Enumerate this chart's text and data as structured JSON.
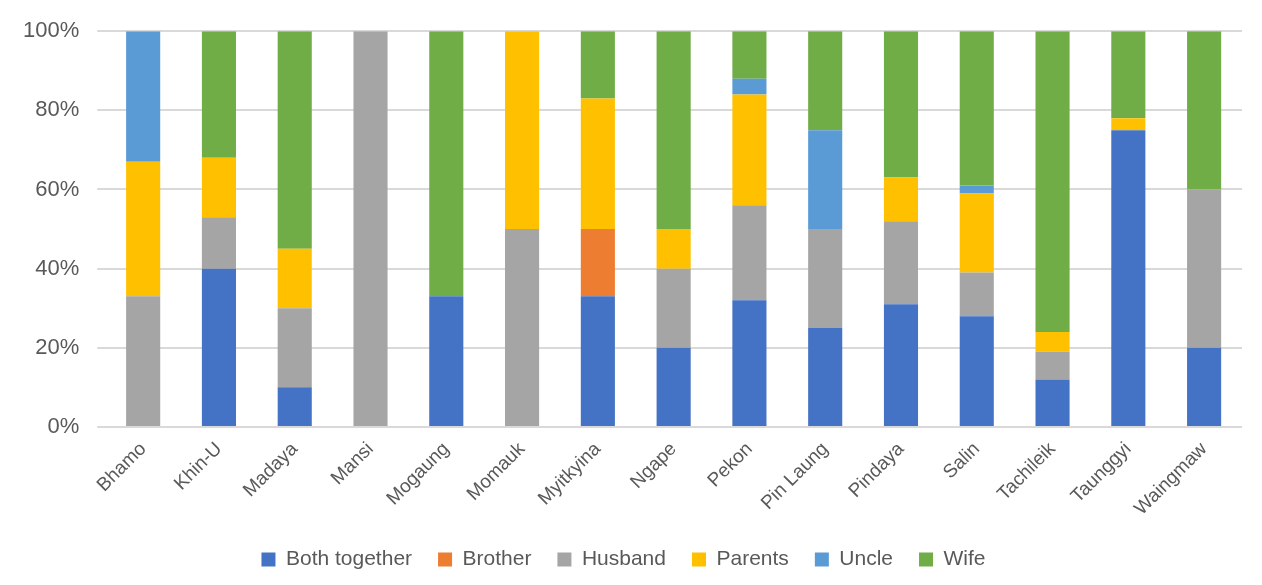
{
  "chart_data": {
    "type": "bar",
    "stacked": true,
    "categories": [
      "Bhamo",
      "Khin-U",
      "Madaya",
      "Mansi",
      "Mogaung",
      "Momauk",
      "Myitkyina",
      "Ngape",
      "Pekon",
      "Pin Laung",
      "Pindaya",
      "Salin",
      "Tachileik",
      "Taunggyi",
      "Waingmaw"
    ],
    "series": [
      {
        "name": "Both together",
        "color": "#4472c4",
        "values": [
          null,
          40,
          10,
          null,
          33,
          null,
          33,
          20,
          32,
          25,
          31,
          28,
          12,
          75,
          20
        ]
      },
      {
        "name": "Brother",
        "color": "#ed7d31",
        "values": [
          null,
          null,
          null,
          null,
          null,
          null,
          17,
          null,
          null,
          null,
          null,
          null,
          null,
          null,
          null
        ]
      },
      {
        "name": "Husband",
        "color": "#a5a5a5",
        "values": [
          33,
          13,
          20,
          100,
          null,
          50,
          null,
          20,
          24,
          25,
          21,
          11,
          7,
          null,
          40
        ]
      },
      {
        "name": "Parents",
        "color": "#ffc000",
        "values": [
          34,
          15,
          15,
          null,
          null,
          50,
          33,
          10,
          28,
          null,
          11,
          20,
          5,
          3,
          null
        ]
      },
      {
        "name": "Uncle",
        "color": "#5b9bd5",
        "values": [
          33,
          null,
          null,
          null,
          null,
          null,
          null,
          null,
          4,
          25,
          null,
          2,
          null,
          null,
          null
        ]
      },
      {
        "name": "Wife",
        "color": "#70ad47",
        "values": [
          null,
          32,
          55,
          null,
          67,
          null,
          17,
          50,
          12,
          25,
          37,
          39,
          76,
          22,
          40
        ]
      }
    ],
    "ylim": [
      0,
      100
    ],
    "yticks": [
      {
        "value": 0,
        "label": "0%"
      },
      {
        "value": 20,
        "label": "20%"
      },
      {
        "value": 40,
        "label": "40%"
      },
      {
        "value": 60,
        "label": "60%"
      },
      {
        "value": 80,
        "label": "80%"
      },
      {
        "value": 100,
        "label": "100%"
      }
    ],
    "grid": "y",
    "legend": "bottom"
  }
}
